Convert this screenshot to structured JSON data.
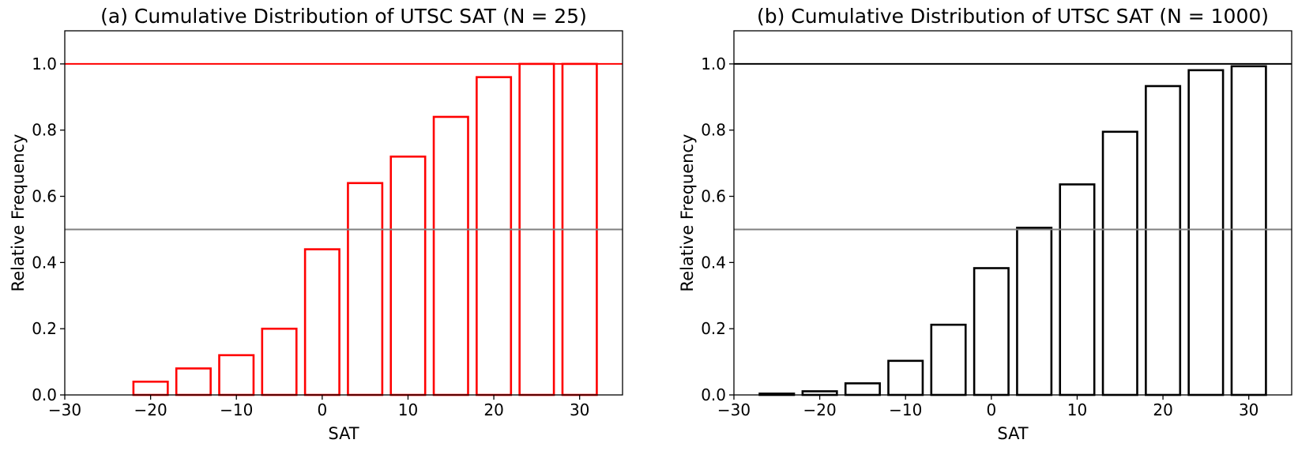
{
  "chart_data": [
    {
      "type": "bar",
      "title": "(a) Cumulative Distribution of UTSC SAT (N = 25)",
      "xlabel": "SAT",
      "ylabel": "Relative Frequency",
      "xlim": [
        -30,
        35
      ],
      "ylim": [
        0,
        1.1
      ],
      "xticks": [
        -30,
        -20,
        -10,
        0,
        10,
        20,
        30
      ],
      "xtick_labels": [
        "−30",
        "−20",
        "−10",
        "0",
        "10",
        "20",
        "30"
      ],
      "yticks": [
        0.0,
        0.2,
        0.4,
        0.6,
        0.8,
        1.0
      ],
      "ytick_labels": [
        "0.0",
        "0.2",
        "0.4",
        "0.6",
        "0.8",
        "1.0"
      ],
      "bar_color": "#ff0000",
      "bar_fill": "none",
      "bar_width": 4,
      "x": [
        -25,
        -20,
        -15,
        -10,
        -5,
        0,
        5,
        10,
        15,
        20,
        25,
        30
      ],
      "values": [
        0.0,
        0.04,
        0.08,
        0.12,
        0.2,
        0.44,
        0.64,
        0.72,
        0.84,
        0.96,
        1.0,
        1.0
      ],
      "reference_lines": [
        {
          "y": 1.0,
          "color": "#ff0000"
        },
        {
          "y": 0.5,
          "color": "#808080"
        }
      ],
      "grid": false,
      "legend": "none"
    },
    {
      "type": "bar",
      "title": "(b) Cumulative Distribution of UTSC SAT (N = 1000)",
      "xlabel": "SAT",
      "ylabel": "Relative Frequency",
      "xlim": [
        -30,
        35
      ],
      "ylim": [
        0,
        1.1
      ],
      "xticks": [
        -30,
        -20,
        -10,
        0,
        10,
        20,
        30
      ],
      "xtick_labels": [
        "−30",
        "−20",
        "−10",
        "0",
        "10",
        "20",
        "30"
      ],
      "yticks": [
        0.0,
        0.2,
        0.4,
        0.6,
        0.8,
        1.0
      ],
      "ytick_labels": [
        "0.0",
        "0.2",
        "0.4",
        "0.6",
        "0.8",
        "1.0"
      ],
      "bar_color": "#000000",
      "bar_fill": "none",
      "bar_width": 4,
      "x": [
        -25,
        -20,
        -15,
        -10,
        -5,
        0,
        5,
        10,
        15,
        20,
        25,
        30
      ],
      "values": [
        0.004,
        0.011,
        0.035,
        0.103,
        0.212,
        0.383,
        0.505,
        0.636,
        0.795,
        0.933,
        0.981,
        0.993
      ],
      "reference_lines": [
        {
          "y": 1.0,
          "color": "#000000"
        },
        {
          "y": 0.5,
          "color": "#808080"
        }
      ],
      "grid": false,
      "legend": "none"
    }
  ]
}
